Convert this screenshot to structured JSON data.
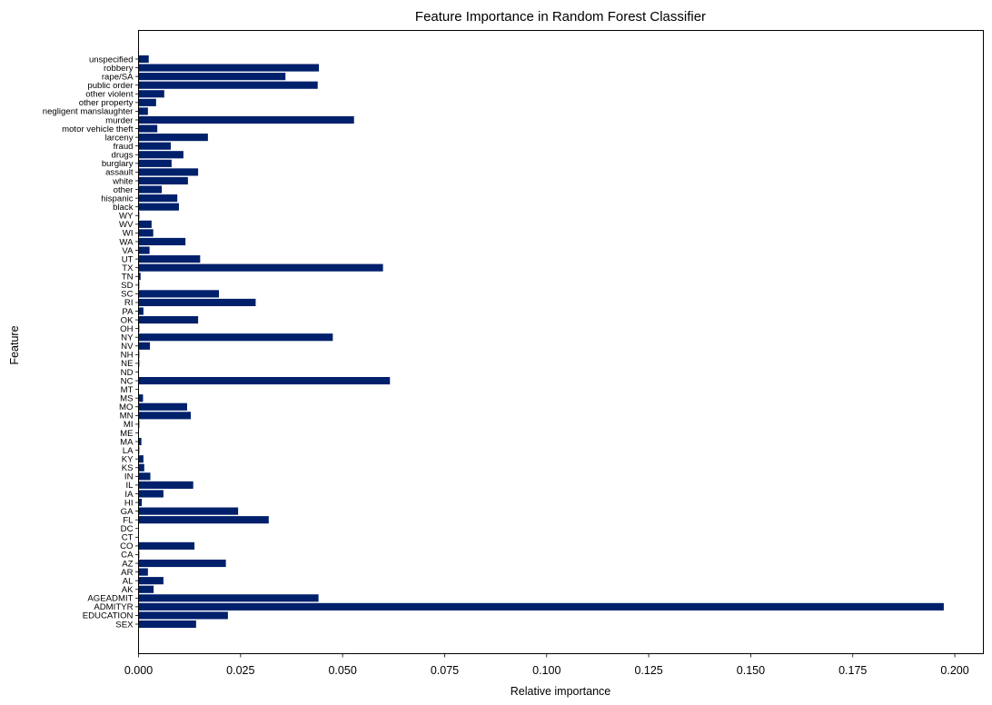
{
  "chart_data": {
    "type": "bar",
    "orientation": "horizontal",
    "title": "Feature Importance in Random Forest Classifier",
    "xlabel": "Relative importance",
    "ylabel": "Feature",
    "xlim": [
      0,
      0.207
    ],
    "xticks": [
      0.0,
      0.025,
      0.05,
      0.075,
      0.1,
      0.125,
      0.15,
      0.175,
      0.2
    ],
    "xtick_labels": [
      "0.000",
      "0.025",
      "0.050",
      "0.075",
      "0.100",
      "0.125",
      "0.150",
      "0.175",
      "0.200"
    ],
    "grid": false,
    "bar_color": "#00206b",
    "categories": [
      "SEX",
      "EDUCATION",
      "ADMITYR",
      "AGEADMIT",
      "AK",
      "AL",
      "AR",
      "AZ",
      "CA",
      "CO",
      "CT",
      "DC",
      "FL",
      "GA",
      "HI",
      "IA",
      "IL",
      "IN",
      "KS",
      "KY",
      "LA",
      "MA",
      "ME",
      "MI",
      "MN",
      "MO",
      "MS",
      "MT",
      "NC",
      "ND",
      "NE",
      "NH",
      "NV",
      "NY",
      "OH",
      "OK",
      "PA",
      "RI",
      "SC",
      "SD",
      "TN",
      "TX",
      "UT",
      "VA",
      "WA",
      "WI",
      "WV",
      "WY",
      "black",
      "hispanic",
      "other",
      "white",
      "assault",
      "burglary",
      "drugs",
      "fraud",
      "larceny",
      "motor vehicle theft",
      "murder",
      "negligent manslaughter",
      "other property",
      "other violent",
      "public order",
      "rape/SA",
      "robbery",
      "unspecified"
    ],
    "values": [
      0.0141,
      0.0219,
      0.1973,
      0.0441,
      0.0037,
      0.0061,
      0.0023,
      0.0214,
      0.0002,
      0.0137,
      0.0001,
      0.0001,
      0.0319,
      0.0244,
      0.0008,
      0.0061,
      0.0134,
      0.0029,
      0.0014,
      0.0012,
      0.0002,
      0.0007,
      0.0001,
      0.0002,
      0.0128,
      0.0119,
      0.0011,
      0.0001,
      0.0616,
      0.0001,
      0.0002,
      0.0002,
      0.0028,
      0.0476,
      0.0002,
      0.0146,
      0.0012,
      0.0287,
      0.0197,
      0.0002,
      0.0005,
      0.0599,
      0.0151,
      0.0027,
      0.0115,
      0.0036,
      0.0032,
      0.0002,
      0.0099,
      0.0095,
      0.0057,
      0.0121,
      0.0146,
      0.0081,
      0.011,
      0.0079,
      0.017,
      0.0046,
      0.0528,
      0.0023,
      0.0043,
      0.0063,
      0.0439,
      0.036,
      0.0442,
      0.0025
    ]
  }
}
